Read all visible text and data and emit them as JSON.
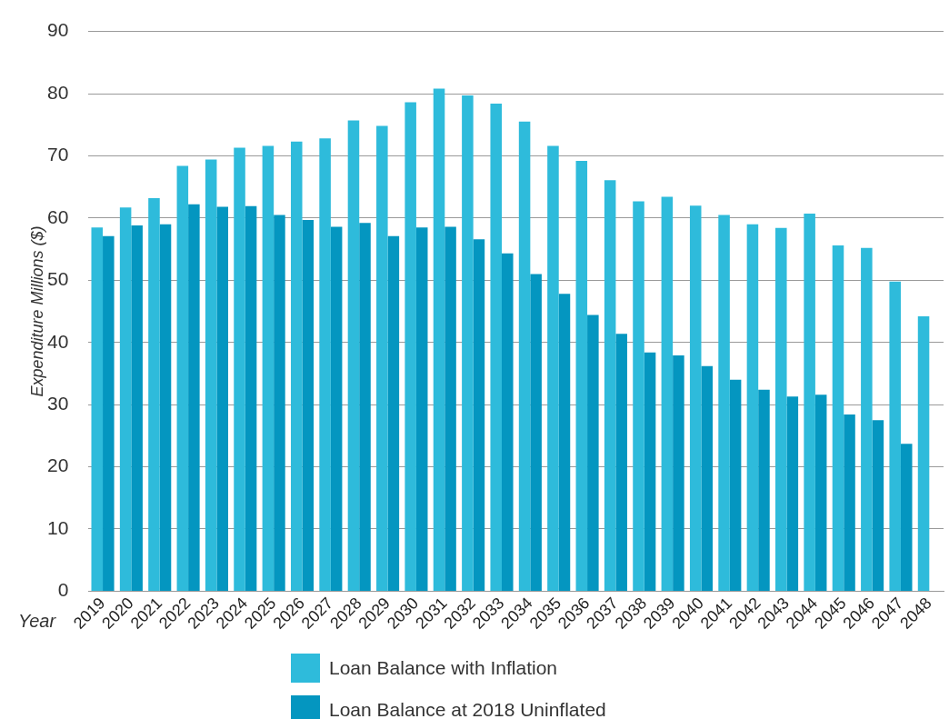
{
  "chart_data": {
    "type": "bar",
    "xlabel": "Year",
    "ylabel": "Expenditure Millions ($)",
    "categories": [
      "2019",
      "2020",
      "2021",
      "2022",
      "2023",
      "2024",
      "2025",
      "2026",
      "2027",
      "2028",
      "2029",
      "2030",
      "2031",
      "2032",
      "2033",
      "2034",
      "2035",
      "2036",
      "2037",
      "2038",
      "2039",
      "2040",
      "2041",
      "2042",
      "2043",
      "2044",
      "2045",
      "2046",
      "2047",
      "2048"
    ],
    "series": [
      {
        "name": "Loan Balance with Inflation",
        "color": "#2ebbdb",
        "values": [
          58.5,
          61.7,
          63.2,
          68.4,
          69.4,
          71.3,
          71.6,
          72.3,
          72.8,
          75.7,
          74.8,
          78.6,
          80.8,
          79.7,
          78.4,
          75.5,
          71.6,
          69.2,
          66.1,
          62.7,
          63.4,
          62.0,
          60.5,
          59.0,
          58.4,
          60.7,
          55.6,
          55.2,
          49.8,
          44.2
        ]
      },
      {
        "name": "Loan Balance at 2018 Uninflated",
        "color": "#0496c0",
        "values": [
          57.1,
          58.8,
          59.0,
          62.2,
          61.8,
          61.9,
          60.5,
          59.7,
          58.6,
          59.2,
          57.1,
          58.5,
          58.6,
          56.6,
          54.3,
          51.0,
          47.8,
          44.4,
          41.4,
          38.4,
          37.9,
          36.2,
          34.0,
          32.4,
          31.3,
          31.6,
          28.4,
          27.5,
          23.7,
          null
        ]
      }
    ],
    "ylim": [
      0,
      90
    ],
    "yticks": [
      0,
      10,
      20,
      30,
      40,
      50,
      60,
      70,
      80,
      90
    ],
    "grid": "y",
    "legend": "bottom"
  }
}
